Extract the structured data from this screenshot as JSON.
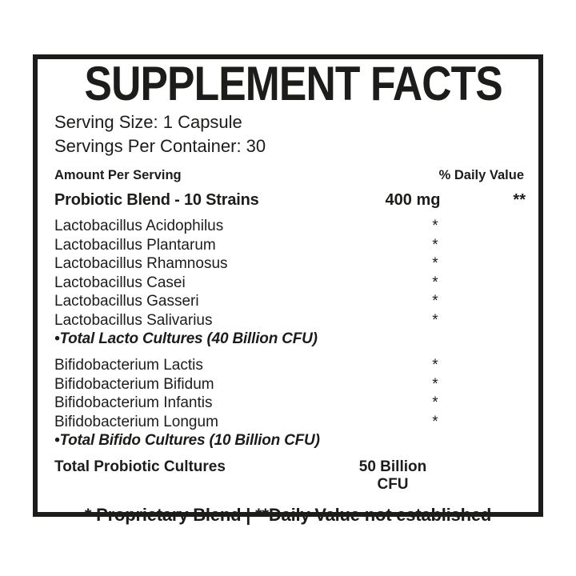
{
  "colors": {
    "ink": "#1c1c1b",
    "background": "#ffffff"
  },
  "label": {
    "title": "SUPPLEMENT FACTS",
    "serving_size": "Serving Size: 1 Capsule",
    "servings_per_container": "Servings Per Container: 30",
    "header": {
      "amount_per_serving": "Amount Per Serving",
      "percent_daily_value": "% Daily Value"
    },
    "blend": {
      "name": "Probiotic Blend - 10 Strains",
      "amount": "400 mg",
      "daily_value": "**"
    },
    "lacto": {
      "items": [
        {
          "name": "Lactobacillus Acidophilus",
          "amount": "*"
        },
        {
          "name": "Lactobacillus Plantarum",
          "amount": "*"
        },
        {
          "name": "Lactobacillus Rhamnosus",
          "amount": "*"
        },
        {
          "name": "Lactobacillus Casei",
          "amount": "*"
        },
        {
          "name": "Lactobacillus Gasseri",
          "amount": "*"
        },
        {
          "name": "Lactobacillus Salivarius",
          "amount": "*"
        }
      ],
      "total": "•Total Lacto Cultures (40 Billion CFU)"
    },
    "bifido": {
      "items": [
        {
          "name": "Bifidobacterium Lactis",
          "amount": "*"
        },
        {
          "name": "Bifidobacterium Bifidum",
          "amount": "*"
        },
        {
          "name": "Bifidobacterium Infantis",
          "amount": "*"
        },
        {
          "name": "Bifidobacterium Longum",
          "amount": "*"
        }
      ],
      "total": "•Total Bifido Cultures (10 Billion CFU)"
    },
    "total_row": {
      "name": "Total Probiotic Cultures",
      "amount": "50 Billion CFU"
    },
    "footnote": "* Proprietary Blend | **Daily Value not established"
  }
}
